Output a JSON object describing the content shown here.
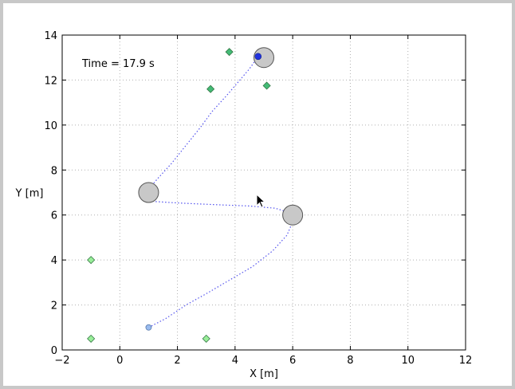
{
  "chart_data": {
    "type": "scatter",
    "title": "",
    "xlabel": "X [m]",
    "ylabel": "Y [m]",
    "xlim": [
      -2,
      12
    ],
    "ylim": [
      0,
      14
    ],
    "xticks": [
      -2,
      0,
      2,
      4,
      6,
      8,
      10,
      12
    ],
    "yticks": [
      0,
      2,
      4,
      6,
      8,
      10,
      12,
      14
    ],
    "xtick_labels": [
      "−2",
      "0",
      "2",
      "4",
      "6",
      "8",
      "10",
      "12"
    ],
    "ytick_labels": [
      "0",
      "2",
      "4",
      "6",
      "8",
      "10",
      "12",
      "14"
    ],
    "grid": true,
    "annotation": "Time = 17.9 s",
    "waypoints": [
      {
        "x": 1.0,
        "y": 7.0
      },
      {
        "x": 6.0,
        "y": 6.0
      },
      {
        "x": 5.0,
        "y": 13.0
      }
    ],
    "targets_collected": [
      {
        "x": 3.8,
        "y": 13.25
      },
      {
        "x": 3.15,
        "y": 11.6
      },
      {
        "x": 5.1,
        "y": 11.75
      }
    ],
    "targets_remaining": [
      {
        "x": -1.0,
        "y": 4.0
      },
      {
        "x": -1.0,
        "y": 0.5
      },
      {
        "x": 3.0,
        "y": 0.5
      }
    ],
    "start": {
      "x": 1.0,
      "y": 1.0
    },
    "robot": {
      "x": 4.8,
      "y": 13.05
    },
    "trajectory": [
      [
        1.0,
        1.0
      ],
      [
        1.6,
        1.4
      ],
      [
        2.3,
        2.0
      ],
      [
        3.0,
        2.5
      ],
      [
        3.8,
        3.1
      ],
      [
        4.6,
        3.7
      ],
      [
        5.3,
        4.4
      ],
      [
        5.8,
        5.1
      ],
      [
        6.0,
        5.7
      ],
      [
        5.9,
        6.1
      ],
      [
        5.4,
        6.3
      ],
      [
        4.5,
        6.4
      ],
      [
        3.5,
        6.45
      ],
      [
        2.6,
        6.5
      ],
      [
        1.8,
        6.55
      ],
      [
        1.2,
        6.6
      ],
      [
        0.9,
        6.65
      ],
      [
        0.85,
        6.9
      ],
      [
        1.0,
        7.15
      ],
      [
        1.3,
        7.6
      ],
      [
        1.8,
        8.3
      ],
      [
        2.3,
        9.1
      ],
      [
        2.8,
        9.9
      ],
      [
        3.2,
        10.6
      ],
      [
        3.7,
        11.3
      ],
      [
        4.1,
        11.9
      ],
      [
        4.5,
        12.5
      ],
      [
        4.8,
        13.05
      ]
    ],
    "colors": {
      "waypoint_fill": "#c8c8c8",
      "waypoint_stroke": "#555555",
      "collected": "#44bb77",
      "remaining": "#99ee99",
      "trajectory": "#5555ee",
      "robot": "#2233dd",
      "start": "#99bbee",
      "grid": "#b0b0b0"
    }
  }
}
